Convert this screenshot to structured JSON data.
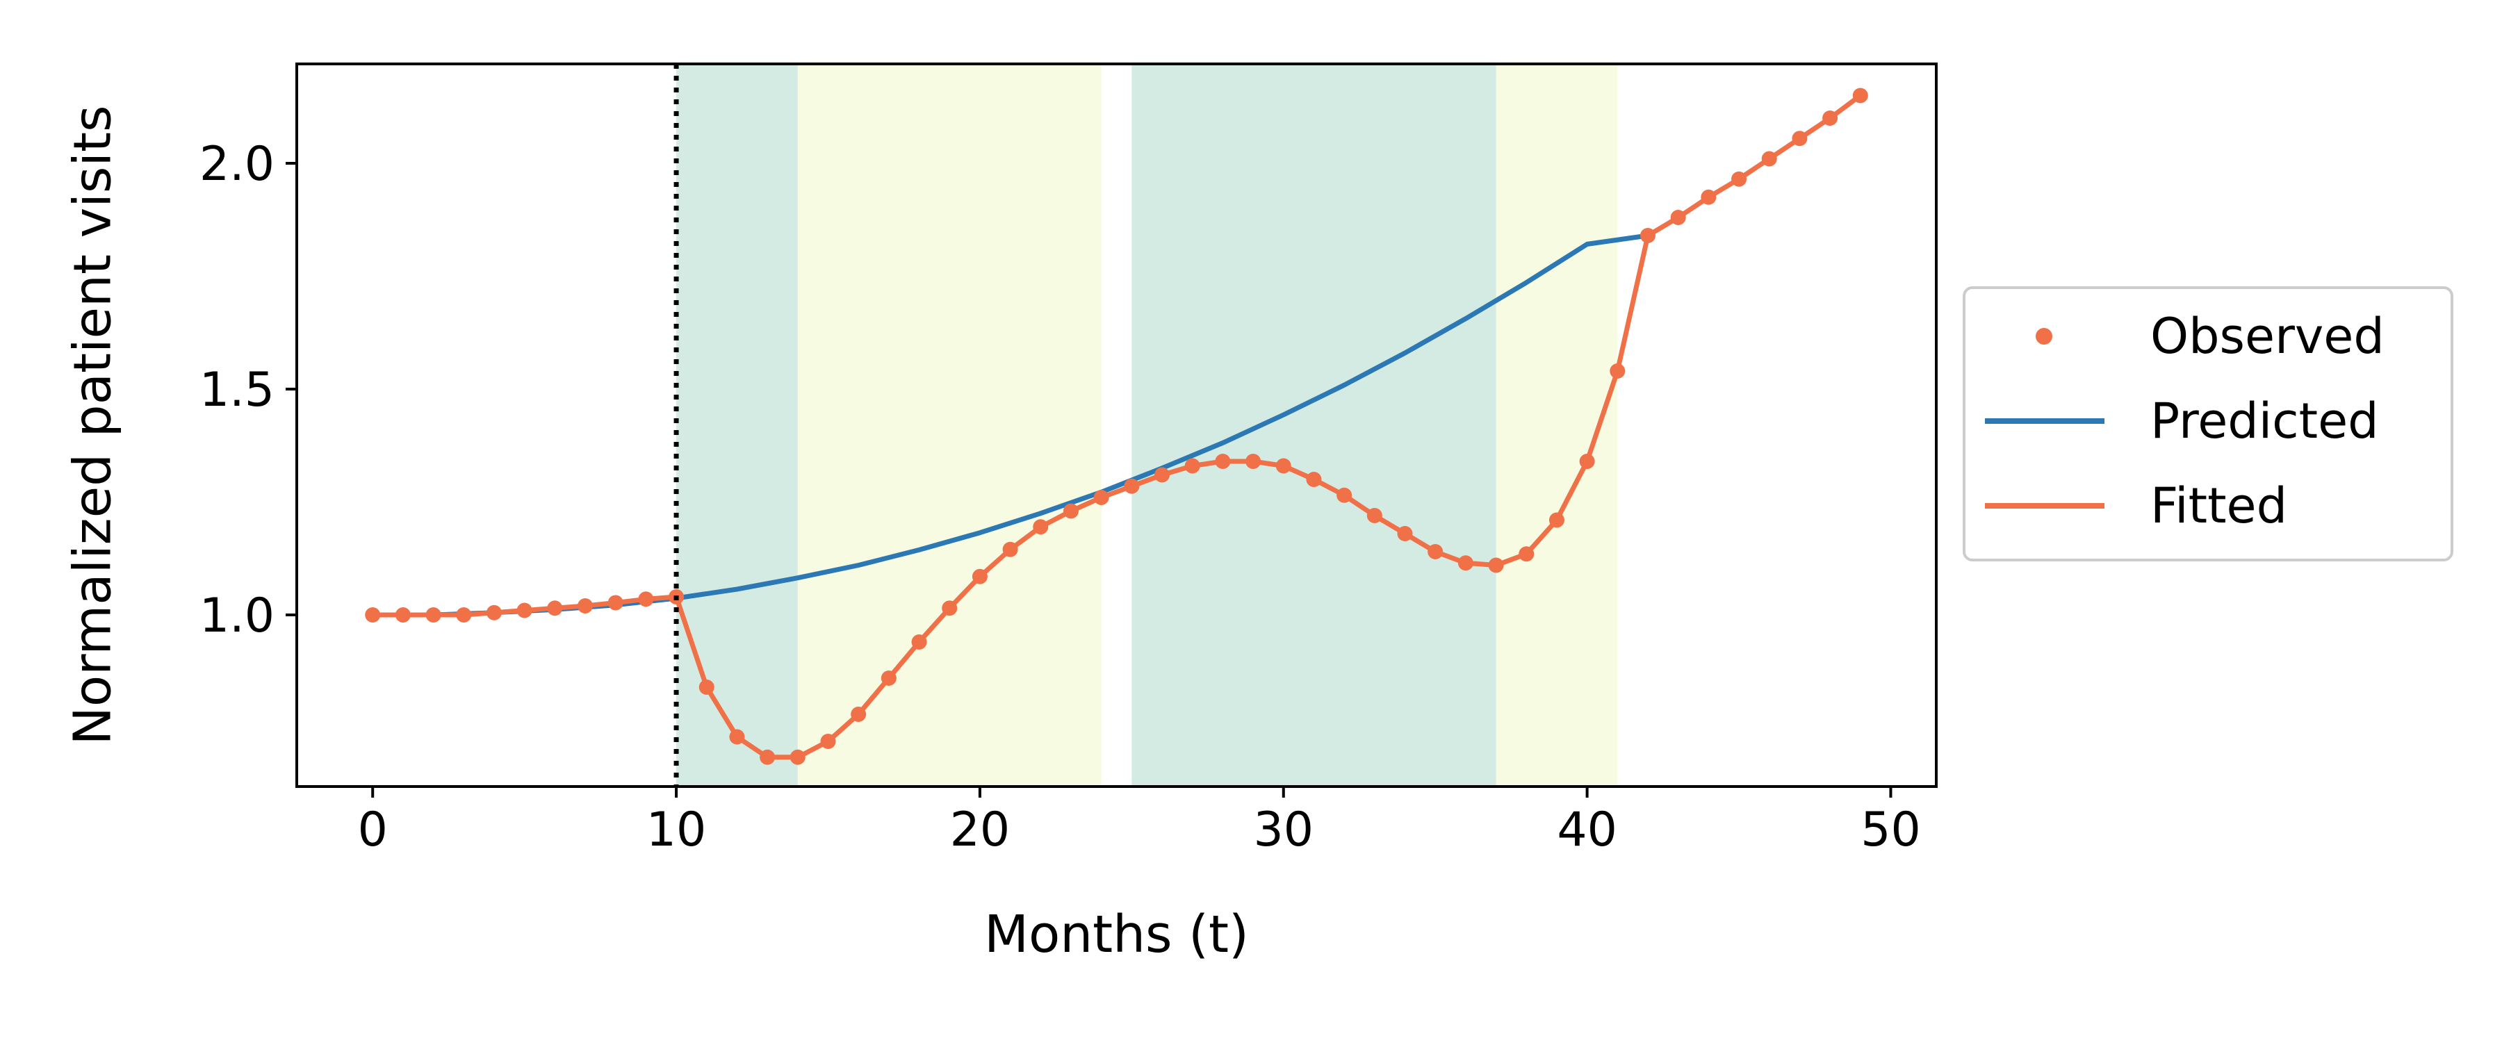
{
  "chart_data": {
    "type": "line",
    "title": "",
    "xlabel": "Months (t)",
    "ylabel": "Normalized patient visits",
    "xlim": [
      -2.5,
      51.5
    ],
    "ylim": [
      0.62,
      2.22
    ],
    "xticks": [
      0,
      10,
      20,
      30,
      40,
      50
    ],
    "xtick_labels": [
      "0",
      "10",
      "20",
      "30",
      "40",
      "50"
    ],
    "yticks": [
      1.0,
      1.5,
      2.0
    ],
    "ytick_labels": [
      "1.0",
      "1.5",
      "2.0"
    ],
    "grid": false,
    "legend_position": "center-right (outside plot)",
    "intervention_line_x": 10,
    "shaded_regions": [
      {
        "x0": 10,
        "x1": 14,
        "color": "#a8d8c8"
      },
      {
        "x0": 14,
        "x1": 24,
        "color": "#eef8c4"
      },
      {
        "x0": 25,
        "x1": 37,
        "color": "#a8d8c8"
      },
      {
        "x0": 37,
        "x1": 41,
        "color": "#eef8c4"
      }
    ],
    "series": [
      {
        "name": "Observed",
        "kind": "scatter",
        "color": "#f07048",
        "x": [
          0,
          1,
          2,
          3,
          4,
          5,
          6,
          7,
          8,
          9,
          10,
          11,
          12,
          13,
          14,
          15,
          16,
          17,
          18,
          19,
          20,
          21,
          22,
          23,
          24,
          25,
          26,
          27,
          28,
          29,
          30,
          31,
          32,
          33,
          34,
          35,
          36,
          37,
          38,
          39,
          40,
          41,
          42,
          43,
          44,
          45,
          46,
          47,
          48,
          49
        ],
        "y": [
          1.0,
          1.0,
          1.0,
          1.0,
          1.005,
          1.01,
          1.015,
          1.02,
          1.027,
          1.035,
          1.04,
          0.84,
          0.73,
          0.685,
          0.685,
          0.72,
          0.78,
          0.86,
          0.94,
          1.015,
          1.085,
          1.145,
          1.195,
          1.23,
          1.26,
          1.285,
          1.31,
          1.33,
          1.34,
          1.34,
          1.33,
          1.3,
          1.265,
          1.22,
          1.18,
          1.14,
          1.115,
          1.11,
          1.135,
          1.21,
          1.34,
          1.54,
          1.84,
          1.88,
          1.925,
          1.965,
          2.01,
          2.055,
          2.1,
          2.15
        ]
      },
      {
        "name": "Predicted",
        "kind": "line",
        "color": "#2b78b4",
        "x": [
          0,
          2,
          4,
          6,
          8,
          10,
          12,
          14,
          16,
          18,
          20,
          22,
          24,
          26,
          28,
          30,
          32,
          34,
          36,
          38,
          40,
          42
        ],
        "y": [
          1.0,
          1.0,
          1.005,
          1.012,
          1.022,
          1.037,
          1.057,
          1.082,
          1.11,
          1.144,
          1.182,
          1.225,
          1.272,
          1.325,
          1.381,
          1.443,
          1.509,
          1.58,
          1.656,
          1.736,
          1.821,
          1.84
        ]
      },
      {
        "name": "Fitted",
        "kind": "line",
        "color": "#f07048",
        "x": [
          0,
          1,
          2,
          3,
          4,
          5,
          6,
          7,
          8,
          9,
          10,
          11,
          12,
          13,
          14,
          15,
          16,
          17,
          18,
          19,
          20,
          21,
          22,
          23,
          24,
          25,
          26,
          27,
          28,
          29,
          30,
          31,
          32,
          33,
          34,
          35,
          36,
          37,
          38,
          39,
          40,
          41,
          42,
          43,
          44,
          45,
          46,
          47,
          48,
          49
        ],
        "y": [
          1.0,
          1.0,
          1.0,
          1.0,
          1.005,
          1.01,
          1.015,
          1.02,
          1.027,
          1.035,
          1.04,
          0.84,
          0.73,
          0.685,
          0.685,
          0.72,
          0.78,
          0.86,
          0.94,
          1.015,
          1.085,
          1.145,
          1.195,
          1.23,
          1.26,
          1.285,
          1.31,
          1.33,
          1.34,
          1.34,
          1.33,
          1.3,
          1.265,
          1.22,
          1.18,
          1.14,
          1.115,
          1.11,
          1.135,
          1.21,
          1.34,
          1.54,
          1.84,
          1.88,
          1.925,
          1.965,
          2.01,
          2.055,
          2.1,
          2.15
        ]
      }
    ],
    "legend": {
      "entries": [
        {
          "label": "Observed",
          "marker": "dot",
          "color": "#f07048"
        },
        {
          "label": "Predicted",
          "marker": "line",
          "color": "#2b78b4"
        },
        {
          "label": "Fitted",
          "marker": "line",
          "color": "#f07048"
        }
      ]
    }
  }
}
